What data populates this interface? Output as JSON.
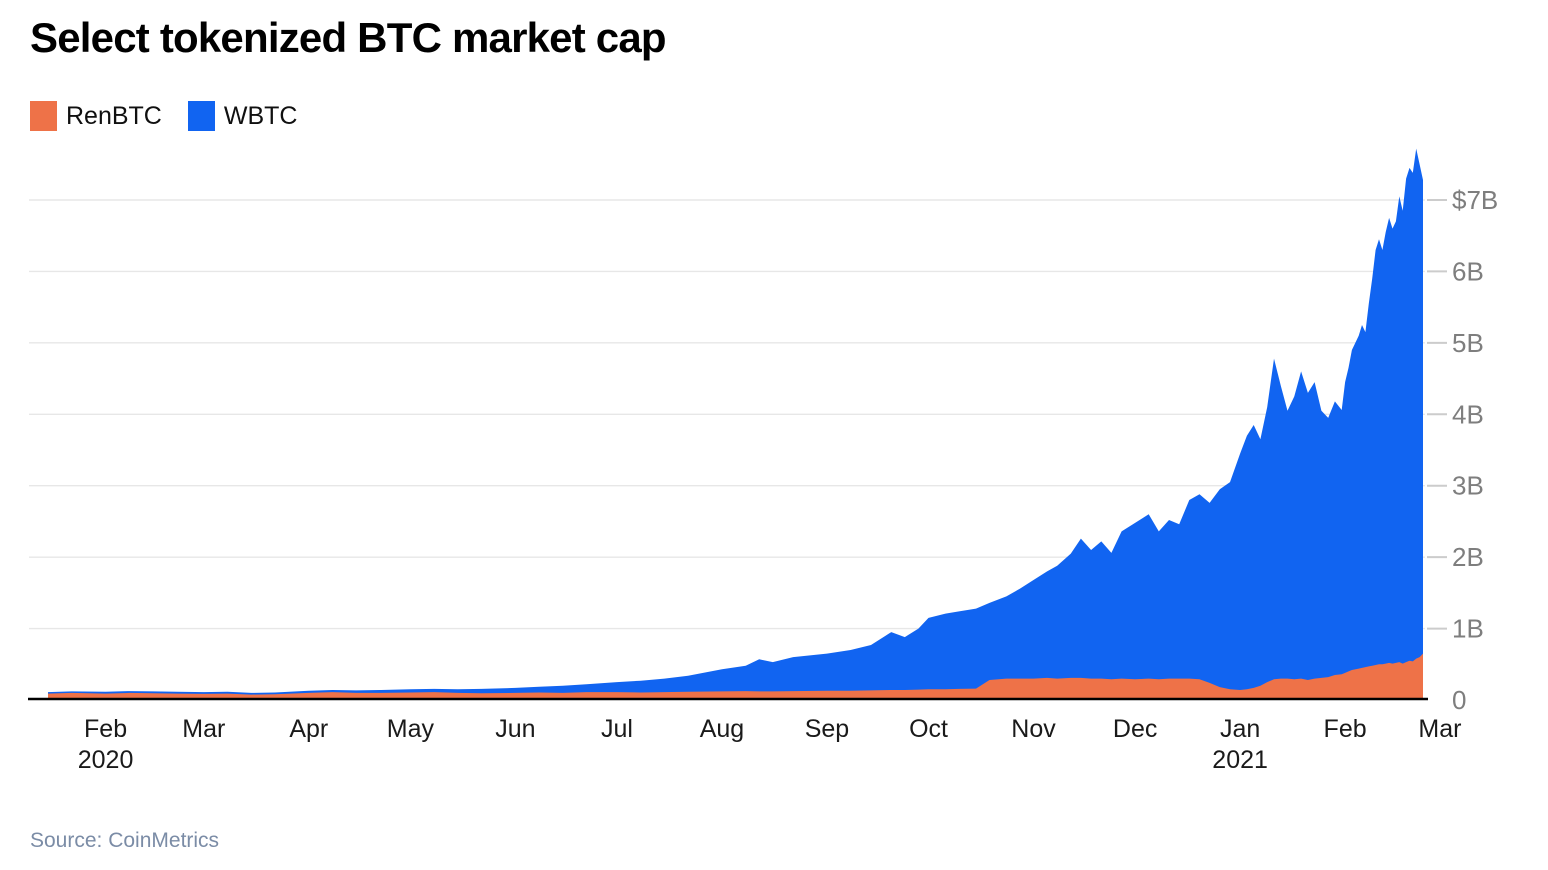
{
  "title": "Select tokenized BTC market cap",
  "source": "Source: CoinMetrics",
  "legend": [
    {
      "label": "RenBTC",
      "color": "#ee7248"
    },
    {
      "label": "WBTC",
      "color": "#1164f1"
    }
  ],
  "colors": {
    "renbtc": "#ee7248",
    "wbtc": "#1164f1",
    "gridline": "#e7e7e7",
    "tick_dash": "#cccccc",
    "y_label": "#7e7e7e",
    "x_label": "#1a1a1a",
    "axis_line": "#000000",
    "source_text": "#7b8ca6"
  },
  "chart_data": {
    "type": "area",
    "stacked": true,
    "title": "Select tokenized BTC market cap",
    "unit": "USD billions",
    "ylim": [
      0,
      7.8
    ],
    "grid": true,
    "legend_position": "top-left",
    "y_axis_side": "right",
    "x": [
      "2020-01-15",
      "2020-01-22",
      "2020-02-01",
      "2020-02-08",
      "2020-02-15",
      "2020-02-22",
      "2020-03-01",
      "2020-03-08",
      "2020-03-15",
      "2020-03-22",
      "2020-04-01",
      "2020-04-08",
      "2020-04-15",
      "2020-04-22",
      "2020-05-01",
      "2020-05-08",
      "2020-05-15",
      "2020-05-22",
      "2020-06-01",
      "2020-06-08",
      "2020-06-15",
      "2020-06-22",
      "2020-07-01",
      "2020-07-08",
      "2020-07-15",
      "2020-07-22",
      "2020-08-01",
      "2020-08-08",
      "2020-08-12",
      "2020-08-16",
      "2020-08-22",
      "2020-09-01",
      "2020-09-08",
      "2020-09-14",
      "2020-09-20",
      "2020-09-24",
      "2020-09-28",
      "2020-10-01",
      "2020-10-06",
      "2020-10-10",
      "2020-10-15",
      "2020-10-19",
      "2020-10-24",
      "2020-10-28",
      "2020-11-01",
      "2020-11-05",
      "2020-11-08",
      "2020-11-12",
      "2020-11-15",
      "2020-11-18",
      "2020-11-21",
      "2020-11-24",
      "2020-11-27",
      "2020-12-01",
      "2020-12-05",
      "2020-12-08",
      "2020-12-11",
      "2020-12-14",
      "2020-12-17",
      "2020-12-20",
      "2020-12-23",
      "2020-12-26",
      "2020-12-29",
      "2021-01-01",
      "2021-01-03",
      "2021-01-05",
      "2021-01-07",
      "2021-01-09",
      "2021-01-11",
      "2021-01-13",
      "2021-01-15",
      "2021-01-17",
      "2021-01-19",
      "2021-01-21",
      "2021-01-23",
      "2021-01-25",
      "2021-01-27",
      "2021-01-29",
      "2021-01-31",
      "2021-02-01",
      "2021-02-02",
      "2021-02-03",
      "2021-02-05",
      "2021-02-06",
      "2021-02-07",
      "2021-02-08",
      "2021-02-09",
      "2021-02-10",
      "2021-02-11",
      "2021-02-12",
      "2021-02-13",
      "2021-02-14",
      "2021-02-15",
      "2021-02-16",
      "2021-02-17",
      "2021-02-18",
      "2021-02-19",
      "2021-02-20",
      "2021-02-21",
      "2021-02-22",
      "2021-02-23",
      "2021-02-24"
    ],
    "series": [
      {
        "name": "RenBTC",
        "color": "#ee7248",
        "values": [
          0.09,
          0.1,
          0.09,
          0.1,
          0.095,
          0.09,
          0.085,
          0.09,
          0.075,
          0.08,
          0.1,
          0.11,
          0.1,
          0.1,
          0.105,
          0.11,
          0.1,
          0.095,
          0.1,
          0.105,
          0.1,
          0.11,
          0.11,
          0.105,
          0.11,
          0.115,
          0.12,
          0.125,
          0.12,
          0.12,
          0.125,
          0.13,
          0.13,
          0.135,
          0.14,
          0.14,
          0.145,
          0.15,
          0.15,
          0.155,
          0.16,
          0.28,
          0.3,
          0.3,
          0.3,
          0.31,
          0.3,
          0.31,
          0.31,
          0.3,
          0.3,
          0.29,
          0.3,
          0.29,
          0.3,
          0.29,
          0.3,
          0.3,
          0.3,
          0.29,
          0.24,
          0.18,
          0.15,
          0.14,
          0.15,
          0.17,
          0.2,
          0.25,
          0.29,
          0.3,
          0.3,
          0.29,
          0.3,
          0.28,
          0.3,
          0.31,
          0.32,
          0.35,
          0.36,
          0.38,
          0.4,
          0.42,
          0.44,
          0.45,
          0.46,
          0.47,
          0.48,
          0.49,
          0.5,
          0.5,
          0.51,
          0.52,
          0.51,
          0.52,
          0.53,
          0.51,
          0.53,
          0.55,
          0.54,
          0.58,
          0.6,
          0.65
        ]
      },
      {
        "name": "WBTC",
        "color": "#1164f1",
        "values": [
          0.02,
          0.02,
          0.025,
          0.025,
          0.025,
          0.025,
          0.025,
          0.025,
          0.025,
          0.025,
          0.03,
          0.03,
          0.035,
          0.04,
          0.045,
          0.045,
          0.05,
          0.06,
          0.07,
          0.08,
          0.1,
          0.11,
          0.14,
          0.165,
          0.19,
          0.225,
          0.31,
          0.355,
          0.45,
          0.41,
          0.475,
          0.52,
          0.57,
          0.635,
          0.81,
          0.74,
          0.855,
          1.0,
          1.06,
          1.085,
          1.12,
          1.08,
          1.15,
          1.26,
          1.38,
          1.49,
          1.58,
          1.74,
          1.95,
          1.8,
          1.92,
          1.77,
          2.06,
          2.19,
          2.3,
          2.07,
          2.22,
          2.16,
          2.5,
          2.59,
          2.52,
          2.77,
          2.9,
          3.31,
          3.55,
          3.68,
          3.45,
          3.85,
          4.49,
          4.1,
          3.75,
          3.96,
          4.3,
          4.02,
          4.15,
          3.74,
          3.63,
          3.83,
          3.7,
          4.07,
          4.25,
          4.48,
          4.66,
          4.8,
          4.69,
          5.08,
          5.42,
          5.81,
          5.95,
          5.8,
          6.04,
          6.23,
          6.09,
          6.18,
          6.52,
          6.34,
          6.77,
          6.9,
          6.84,
          7.14,
          6.9,
          6.63
        ]
      }
    ],
    "y_ticks": [
      {
        "value": 0,
        "label": "0"
      },
      {
        "value": 1,
        "label": "1B"
      },
      {
        "value": 2,
        "label": "2B"
      },
      {
        "value": 3,
        "label": "3B"
      },
      {
        "value": 4,
        "label": "4B"
      },
      {
        "value": 5,
        "label": "5B"
      },
      {
        "value": 6,
        "label": "6B"
      },
      {
        "value": 7,
        "label": "$7B"
      }
    ],
    "x_ticks": [
      {
        "date": "2020-02-01",
        "label": "Feb",
        "sublabel": "2020"
      },
      {
        "date": "2020-03-01",
        "label": "Mar"
      },
      {
        "date": "2020-04-01",
        "label": "Apr"
      },
      {
        "date": "2020-05-01",
        "label": "May"
      },
      {
        "date": "2020-06-01",
        "label": "Jun"
      },
      {
        "date": "2020-07-01",
        "label": "Jul"
      },
      {
        "date": "2020-08-01",
        "label": "Aug"
      },
      {
        "date": "2020-09-01",
        "label": "Sep"
      },
      {
        "date": "2020-10-01",
        "label": "Oct"
      },
      {
        "date": "2020-11-01",
        "label": "Nov"
      },
      {
        "date": "2020-12-01",
        "label": "Dec"
      },
      {
        "date": "2021-01-01",
        "label": "Jan",
        "sublabel": "2021"
      },
      {
        "date": "2021-02-01",
        "label": "Feb"
      },
      {
        "date": "2021-03-01",
        "label": "Mar"
      }
    ]
  }
}
